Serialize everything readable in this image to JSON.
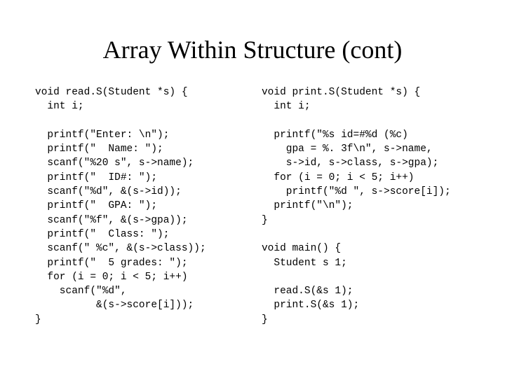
{
  "title": "Array Within Structure (cont)",
  "left_code": "void read.S(Student *s) {\n  int i;\n\n  printf(\"Enter: \\n\");\n  printf(\"  Name: \");\n  scanf(\"%20 s\", s->name);\n  printf(\"  ID#: \");\n  scanf(\"%d\", &(s->id));\n  printf(\"  GPA: \");\n  scanf(\"%f\", &(s->gpa));\n  printf(\"  Class: \");\n  scanf(\" %c\", &(s->class));\n  printf(\"  5 grades: \");\n  for (i = 0; i < 5; i++)\n    scanf(\"%d\",\n          &(s->score[i]));\n}",
  "right_code": "void print.S(Student *s) {\n  int i;\n\n  printf(\"%s id=#%d (%c)\n    gpa = %. 3f\\n\", s->name,\n    s->id, s->class, s->gpa);\n  for (i = 0; i < 5; i++)\n    printf(\"%d \", s->score[i]);\n  printf(\"\\n\");\n}\n\nvoid main() {\n  Student s 1;\n\n  read.S(&s 1);\n  print.S(&s 1);\n}",
  "style": {
    "background_color": "#ffffff",
    "title_fontsize": 36,
    "title_font": "Times New Roman",
    "code_font": "Courier New",
    "code_fontsize": 14.5,
    "text_color": "#000000"
  }
}
